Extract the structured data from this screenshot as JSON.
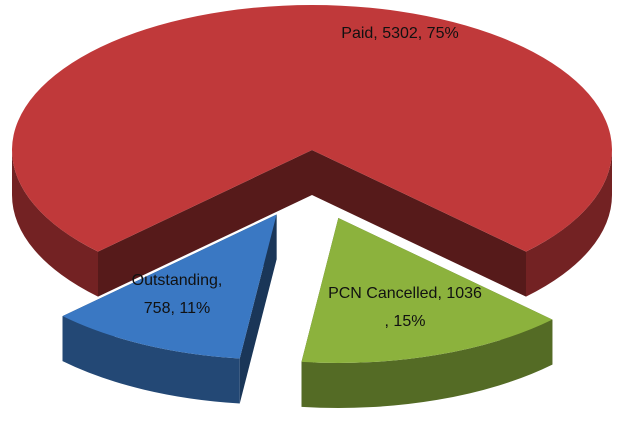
{
  "chart_data": {
    "type": "pie3d",
    "categories": [
      "Paid",
      "PCN Cancelled",
      "Outstanding"
    ],
    "values": [
      5302,
      1036,
      758
    ],
    "value_labels": [
      "Paid, 5302, 75%",
      "PCN Cancelled, 1036\n, 15%",
      "Outstanding,\n758, 11%"
    ],
    "colors": [
      "#c0393a",
      "#8cb23d",
      "#3a78c3"
    ],
    "exploded": [
      false,
      true,
      true
    ]
  }
}
